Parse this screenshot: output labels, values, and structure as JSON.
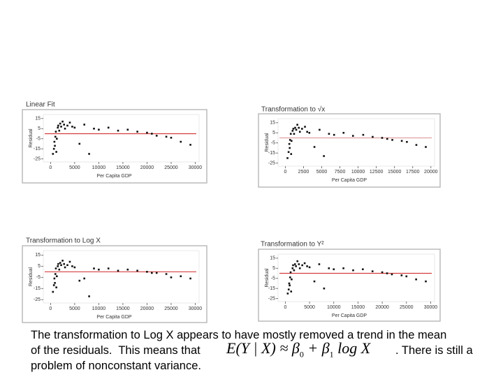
{
  "chart_data": [
    {
      "type": "scatter",
      "title": "Linear Fit",
      "xlabel": "Per Capita GDP",
      "ylabel": "Residual",
      "xlim": [
        -1500,
        30800
      ],
      "ylim": [
        -28,
        19
      ],
      "xticks": [
        0,
        5000,
        10000,
        15000,
        20000,
        25000,
        30000
      ],
      "yticks": [
        15,
        5,
        -5,
        -15,
        -25
      ],
      "reference_line": 0,
      "reference_color": "#d43c3c",
      "color": "#111",
      "x": [
        500,
        700,
        800,
        900,
        1000,
        1100,
        1200,
        1300,
        1500,
        1600,
        1800,
        2000,
        2200,
        2500,
        2800,
        3000,
        3500,
        4000,
        4500,
        5000,
        6000,
        7000,
        8000,
        9000,
        10000,
        12000,
        14000,
        16000,
        18000,
        20000,
        21000,
        22000,
        24000,
        25000,
        27000,
        29000
      ],
      "y": [
        -20,
        -15,
        -8,
        -12,
        -3,
        2,
        -18,
        -5,
        6,
        8,
        3,
        10,
        7,
        12,
        9,
        5,
        8,
        11,
        7,
        6,
        -10,
        9,
        -20,
        5,
        4,
        6,
        3,
        4,
        2,
        1,
        0,
        -2,
        -3,
        -4,
        -8,
        -11
      ]
    },
    {
      "type": "scatter",
      "title": "Transformation to √x",
      "xlabel": "Per Capita GDP",
      "ylabel": "Residual",
      "xlim": [
        -1000,
        20500
      ],
      "ylim": [
        -28,
        19
      ],
      "xticks": [
        0,
        2500,
        5000,
        7500,
        10000,
        12500,
        15000,
        17500,
        20000
      ],
      "yticks": [
        15,
        5,
        -5,
        -15,
        -25
      ],
      "reference_line": 0,
      "reference_color": "#e0a0a0",
      "color": "#111",
      "x": [
        300,
        450,
        550,
        600,
        650,
        750,
        800,
        850,
        1000,
        1100,
        1200,
        1350,
        1500,
        1650,
        1850,
        2000,
        2300,
        2700,
        3000,
        3300,
        4000,
        4700,
        5300,
        6000,
        6700,
        8000,
        9300,
        10700,
        12000,
        13300,
        14000,
        14700,
        16000,
        16700,
        18000,
        19300
      ],
      "y": [
        -20,
        -14,
        -6,
        -10,
        -2,
        4,
        -16,
        -3,
        7,
        9,
        4,
        10,
        8,
        13,
        10,
        6,
        9,
        11,
        6,
        5,
        -9,
        8,
        -18,
        4,
        3,
        5,
        2,
        3,
        1,
        0,
        -1,
        -2,
        -3,
        -4,
        -7,
        -9
      ]
    },
    {
      "type": "scatter",
      "title": "Transformation to Log X",
      "xlabel": "Per Capita GDP",
      "ylabel": "Residual",
      "xlim": [
        -1500,
        30800
      ],
      "ylim": [
        -28,
        19
      ],
      "xticks": [
        0,
        5000,
        10000,
        15000,
        20000,
        25000,
        30000
      ],
      "yticks": [
        15,
        5,
        -5,
        -15,
        -25
      ],
      "reference_line": 0,
      "reference_color": "#d43c3c",
      "color": "#111",
      "x": [
        500,
        700,
        800,
        900,
        1000,
        1100,
        1200,
        1300,
        1500,
        1600,
        1800,
        2000,
        2200,
        2500,
        2800,
        3000,
        3500,
        4000,
        4500,
        5000,
        6000,
        7000,
        8000,
        9000,
        10000,
        12000,
        14000,
        16000,
        18000,
        20000,
        21000,
        22000,
        24000,
        25000,
        27000,
        29000
      ],
      "y": [
        -18,
        -12,
        -6,
        -10,
        -2,
        3,
        -14,
        -4,
        5,
        7,
        2,
        8,
        6,
        10,
        7,
        4,
        6,
        9,
        5,
        4,
        -8,
        -6,
        -22,
        3,
        2,
        3,
        1,
        2,
        1,
        0,
        -1,
        -1,
        -2,
        -5,
        -4,
        -6
      ]
    },
    {
      "type": "scatter",
      "title": "Transformation to Y²",
      "xlabel": "Per Capita GDP",
      "ylabel": "Residual",
      "xlim": [
        -1500,
        30800
      ],
      "ylim": [
        -28,
        19
      ],
      "xticks": [
        0,
        5000,
        10000,
        15000,
        20000,
        25000,
        30000
      ],
      "yticks": [
        15,
        5,
        -5,
        -15,
        -25
      ],
      "reference_line": 0,
      "reference_color": "#d43c3c",
      "color": "#111",
      "x": [
        500,
        700,
        800,
        900,
        1000,
        1100,
        1200,
        1300,
        1500,
        1600,
        1800,
        2000,
        2200,
        2500,
        2800,
        3000,
        3500,
        4000,
        4500,
        5000,
        6000,
        7000,
        8000,
        9000,
        10000,
        12000,
        14000,
        16000,
        18000,
        20000,
        21000,
        22000,
        24000,
        25000,
        27000,
        29000
      ],
      "y": [
        -20,
        -16,
        -10,
        -12,
        -4,
        1,
        -18,
        -6,
        5,
        8,
        3,
        9,
        7,
        12,
        9,
        5,
        8,
        10,
        7,
        6,
        -8,
        9,
        -15,
        5,
        4,
        5,
        3,
        4,
        2,
        1,
        0,
        -1,
        -2,
        -3,
        -6,
        -8
      ]
    }
  ],
  "text": {
    "line1": "The transformation to Log X appears to have mostly removed a trend in the mean",
    "line2": "of the residuals.  This means that",
    "formula": [
      "E(Y | X) ≈ β",
      "0",
      " + β",
      "1",
      " log X"
    ],
    "line2_end": ". There is still a",
    "line3": "problem of nonconstant variance."
  }
}
